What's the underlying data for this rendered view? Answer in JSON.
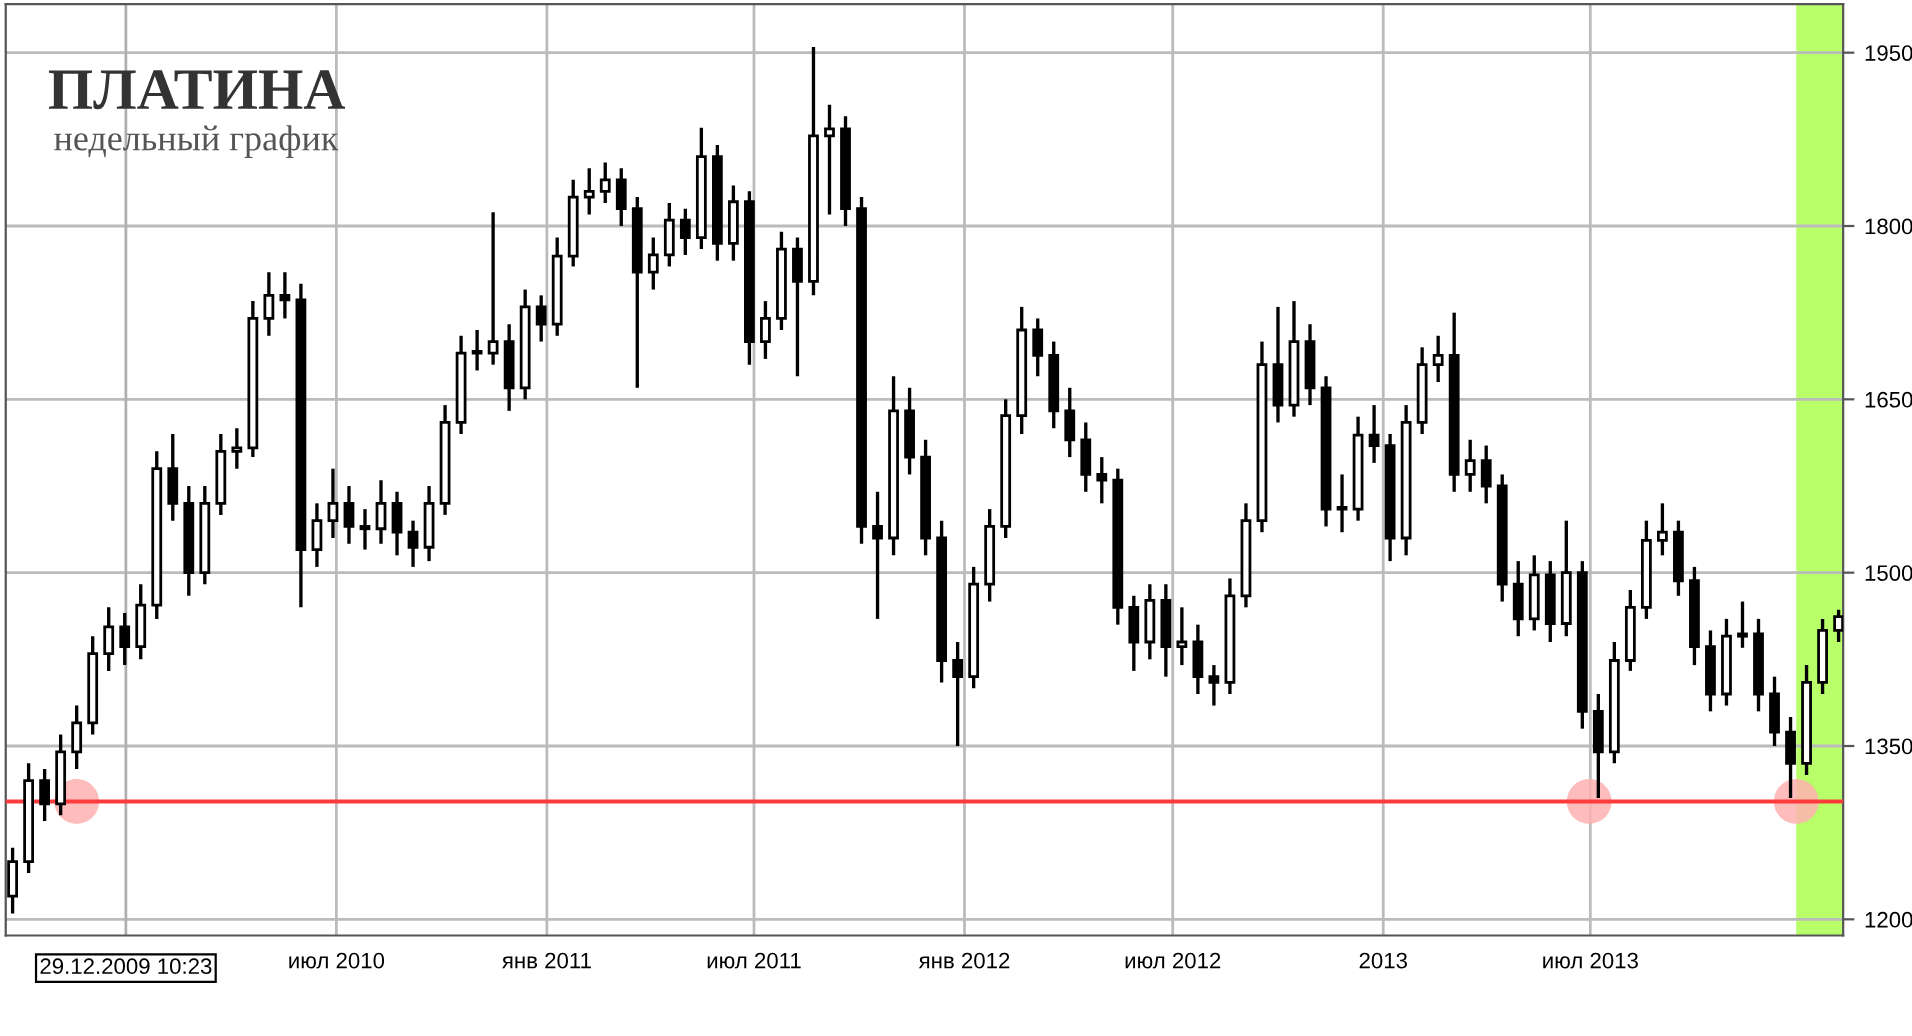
{
  "chart_data": {
    "type": "candlestick",
    "title": "ПЛАТИНА",
    "subtitle": "недельный график",
    "x": [
      "2009-09-21",
      "2009-10-05",
      "2009-10-19",
      "2009-11-02",
      "2009-11-16",
      "2009-11-30",
      "2009-12-14",
      "2009-12-28",
      "2010-01-11",
      "2010-01-25",
      "2010-02-08",
      "2010-02-22",
      "2010-03-08",
      "2010-03-22",
      "2010-04-05",
      "2010-04-19",
      "2010-05-03",
      "2010-05-17",
      "2010-05-31",
      "2010-06-14",
      "2010-06-28",
      "2010-07-12",
      "2010-07-26",
      "2010-08-09",
      "2010-08-23",
      "2010-09-06",
      "2010-09-20",
      "2010-10-04",
      "2010-10-18",
      "2010-11-01",
      "2010-11-15",
      "2010-11-29",
      "2010-12-13",
      "2010-12-27",
      "2011-01-10",
      "2011-01-24",
      "2011-02-07",
      "2011-02-21",
      "2011-03-07",
      "2011-03-21",
      "2011-04-04",
      "2011-04-18",
      "2011-05-02",
      "2011-05-16",
      "2011-05-30",
      "2011-06-13",
      "2011-06-27",
      "2011-07-11",
      "2011-07-25",
      "2011-08-08",
      "2011-08-22",
      "2011-09-05",
      "2011-09-19",
      "2011-10-03",
      "2011-10-17",
      "2011-10-31",
      "2011-11-14",
      "2011-11-28",
      "2011-12-12",
      "2011-12-26",
      "2012-01-09",
      "2012-01-23",
      "2012-02-06",
      "2012-02-20",
      "2012-03-05",
      "2012-03-19",
      "2012-04-02",
      "2012-04-16",
      "2012-04-30",
      "2012-05-14",
      "2012-05-28",
      "2012-06-11",
      "2012-06-25",
      "2012-07-09",
      "2012-07-23",
      "2012-08-06",
      "2012-08-20",
      "2012-09-03",
      "2012-09-17",
      "2012-10-01",
      "2012-10-15",
      "2012-10-29",
      "2012-11-12",
      "2012-11-26",
      "2012-12-10",
      "2012-12-24",
      "2013-01-07",
      "2013-01-21",
      "2013-02-04",
      "2013-02-18",
      "2013-03-04",
      "2013-03-18",
      "2013-04-01",
      "2013-04-15",
      "2013-04-29",
      "2013-05-13",
      "2013-05-27",
      "2013-06-10",
      "2013-06-24",
      "2013-07-08",
      "2013-07-22",
      "2013-08-05",
      "2013-08-19",
      "2013-09-02",
      "2013-09-16",
      "2013-09-30",
      "2013-10-14",
      "2013-10-28",
      "2013-11-11",
      "2013-11-25",
      "2013-12-09",
      "2013-12-23",
      "2014-01-06",
      "2014-01-20",
      "2014-02-03"
    ],
    "ohlc": [
      [
        1220,
        1262,
        1205,
        1250
      ],
      [
        1250,
        1335,
        1240,
        1320
      ],
      [
        1320,
        1330,
        1285,
        1300
      ],
      [
        1300,
        1360,
        1290,
        1345
      ],
      [
        1345,
        1385,
        1330,
        1370
      ],
      [
        1370,
        1445,
        1360,
        1430
      ],
      [
        1430,
        1470,
        1415,
        1453
      ],
      [
        1453,
        1465,
        1420,
        1436
      ],
      [
        1436,
        1490,
        1425,
        1472
      ],
      [
        1472,
        1605,
        1460,
        1590
      ],
      [
        1590,
        1620,
        1545,
        1560
      ],
      [
        1560,
        1575,
        1480,
        1500
      ],
      [
        1500,
        1575,
        1490,
        1560
      ],
      [
        1560,
        1620,
        1550,
        1605
      ],
      [
        1605,
        1625,
        1590,
        1608
      ],
      [
        1608,
        1735,
        1600,
        1720
      ],
      [
        1720,
        1760,
        1705,
        1740
      ],
      [
        1740,
        1760,
        1720,
        1736
      ],
      [
        1736,
        1750,
        1470,
        1520
      ],
      [
        1520,
        1560,
        1505,
        1545
      ],
      [
        1545,
        1590,
        1530,
        1560
      ],
      [
        1560,
        1575,
        1525,
        1540
      ],
      [
        1540,
        1555,
        1520,
        1538
      ],
      [
        1538,
        1580,
        1525,
        1560
      ],
      [
        1560,
        1570,
        1515,
        1535
      ],
      [
        1535,
        1545,
        1505,
        1522
      ],
      [
        1522,
        1575,
        1510,
        1560
      ],
      [
        1560,
        1645,
        1550,
        1630
      ],
      [
        1630,
        1705,
        1620,
        1690
      ],
      [
        1690,
        1710,
        1675,
        1690
      ],
      [
        1690,
        1812,
        1680,
        1700
      ],
      [
        1700,
        1715,
        1640,
        1660
      ],
      [
        1660,
        1745,
        1650,
        1730
      ],
      [
        1730,
        1740,
        1700,
        1715
      ],
      [
        1715,
        1790,
        1705,
        1774
      ],
      [
        1774,
        1840,
        1765,
        1825
      ],
      [
        1825,
        1850,
        1810,
        1830
      ],
      [
        1830,
        1855,
        1820,
        1840
      ],
      [
        1840,
        1850,
        1800,
        1815
      ],
      [
        1815,
        1825,
        1660,
        1760
      ],
      [
        1760,
        1790,
        1745,
        1775
      ],
      [
        1775,
        1820,
        1765,
        1805
      ],
      [
        1805,
        1815,
        1775,
        1790
      ],
      [
        1790,
        1885,
        1780,
        1860
      ],
      [
        1860,
        1870,
        1770,
        1785
      ],
      [
        1785,
        1835,
        1770,
        1821
      ],
      [
        1821,
        1830,
        1680,
        1700
      ],
      [
        1700,
        1735,
        1685,
        1720
      ],
      [
        1720,
        1795,
        1710,
        1780
      ],
      [
        1780,
        1790,
        1670,
        1752
      ],
      [
        1752,
        1955,
        1740,
        1878
      ],
      [
        1878,
        1905,
        1810,
        1884
      ],
      [
        1884,
        1895,
        1800,
        1815
      ],
      [
        1815,
        1825,
        1525,
        1540
      ],
      [
        1540,
        1570,
        1460,
        1530
      ],
      [
        1530,
        1670,
        1515,
        1640
      ],
      [
        1640,
        1660,
        1585,
        1600
      ],
      [
        1600,
        1615,
        1515,
        1530
      ],
      [
        1530,
        1545,
        1405,
        1424
      ],
      [
        1424,
        1440,
        1350,
        1410
      ],
      [
        1410,
        1505,
        1400,
        1490
      ],
      [
        1490,
        1555,
        1475,
        1540
      ],
      [
        1540,
        1650,
        1530,
        1636
      ],
      [
        1636,
        1730,
        1620,
        1710
      ],
      [
        1710,
        1720,
        1670,
        1688
      ],
      [
        1688,
        1700,
        1625,
        1640
      ],
      [
        1640,
        1660,
        1600,
        1615
      ],
      [
        1615,
        1630,
        1570,
        1585
      ],
      [
        1585,
        1600,
        1560,
        1580
      ],
      [
        1580,
        1590,
        1455,
        1470
      ],
      [
        1470,
        1480,
        1415,
        1440
      ],
      [
        1440,
        1490,
        1425,
        1476
      ],
      [
        1476,
        1490,
        1410,
        1436
      ],
      [
        1436,
        1470,
        1420,
        1440
      ],
      [
        1440,
        1455,
        1395,
        1410
      ],
      [
        1410,
        1420,
        1385,
        1405
      ],
      [
        1405,
        1495,
        1395,
        1480
      ],
      [
        1480,
        1560,
        1470,
        1545
      ],
      [
        1545,
        1700,
        1535,
        1680
      ],
      [
        1680,
        1730,
        1630,
        1645
      ],
      [
        1645,
        1735,
        1635,
        1700
      ],
      [
        1700,
        1715,
        1645,
        1660
      ],
      [
        1660,
        1670,
        1540,
        1555
      ],
      [
        1555,
        1585,
        1535,
        1555
      ],
      [
        1555,
        1635,
        1545,
        1619
      ],
      [
        1619,
        1645,
        1595,
        1610
      ],
      [
        1610,
        1620,
        1510,
        1530
      ],
      [
        1530,
        1645,
        1515,
        1630
      ],
      [
        1630,
        1695,
        1620,
        1680
      ],
      [
        1680,
        1705,
        1665,
        1688
      ],
      [
        1688,
        1725,
        1570,
        1585
      ],
      [
        1585,
        1615,
        1570,
        1597
      ],
      [
        1597,
        1610,
        1560,
        1575
      ],
      [
        1575,
        1585,
        1475,
        1490
      ],
      [
        1490,
        1510,
        1445,
        1460
      ],
      [
        1460,
        1515,
        1450,
        1498
      ],
      [
        1498,
        1510,
        1440,
        1456
      ],
      [
        1456,
        1545,
        1445,
        1500
      ],
      [
        1500,
        1510,
        1365,
        1380
      ],
      [
        1380,
        1395,
        1305,
        1345
      ],
      [
        1345,
        1440,
        1335,
        1424
      ],
      [
        1424,
        1485,
        1415,
        1470
      ],
      [
        1470,
        1545,
        1460,
        1528
      ],
      [
        1528,
        1560,
        1515,
        1535
      ],
      [
        1535,
        1545,
        1480,
        1493
      ],
      [
        1493,
        1505,
        1420,
        1436
      ],
      [
        1436,
        1450,
        1380,
        1395
      ],
      [
        1395,
        1460,
        1385,
        1445
      ],
      [
        1445,
        1475,
        1435,
        1447
      ],
      [
        1447,
        1460,
        1380,
        1395
      ],
      [
        1395,
        1410,
        1350,
        1362
      ],
      [
        1362,
        1375,
        1305,
        1335
      ],
      [
        1335,
        1420,
        1325,
        1405
      ],
      [
        1405,
        1460,
        1395,
        1450
      ],
      [
        1450,
        1468,
        1440,
        1462
      ]
    ],
    "ylim": [
      1186,
      1992
    ],
    "yticks": [
      1200,
      1350,
      1500,
      1650,
      1800,
      1950
    ],
    "xlim": [
      "2009-09-15",
      "2014-02-07"
    ],
    "xticks": [
      {
        "value": "2010-07-01",
        "label": "июл 2010"
      },
      {
        "value": "2011-01-01",
        "label": "янв 2011"
      },
      {
        "value": "2011-07-01",
        "label": "июл 2011"
      },
      {
        "value": "2012-01-01",
        "label": "янв 2012"
      },
      {
        "value": "2012-07-01",
        "label": "июл 2012"
      },
      {
        "value": "2013-01-01",
        "label": "2013"
      },
      {
        "value": "2013-07-01",
        "label": "июл 2013"
      }
    ],
    "grid": true,
    "series": [
      {
        "type": "scatter",
        "color": "#ffb0b0",
        "x": [
          "2009-11-16",
          "2013-06-30",
          "2013-12-28"
        ],
        "values": [
          1302,
          1302,
          1302
        ]
      }
    ],
    "ref_lines": [
      {
        "axis": "y",
        "value": 1302,
        "color": "#ff3b3b"
      },
      {
        "axis": "x",
        "value": "2009-12-29",
        "label": "29.12.2009 10:23",
        "color": "#b0b0b0"
      }
    ],
    "bands": [
      {
        "axis": "x",
        "from": "2013-12-28",
        "to": "2014-02-07",
        "color": "#b8ff6a"
      }
    ]
  }
}
